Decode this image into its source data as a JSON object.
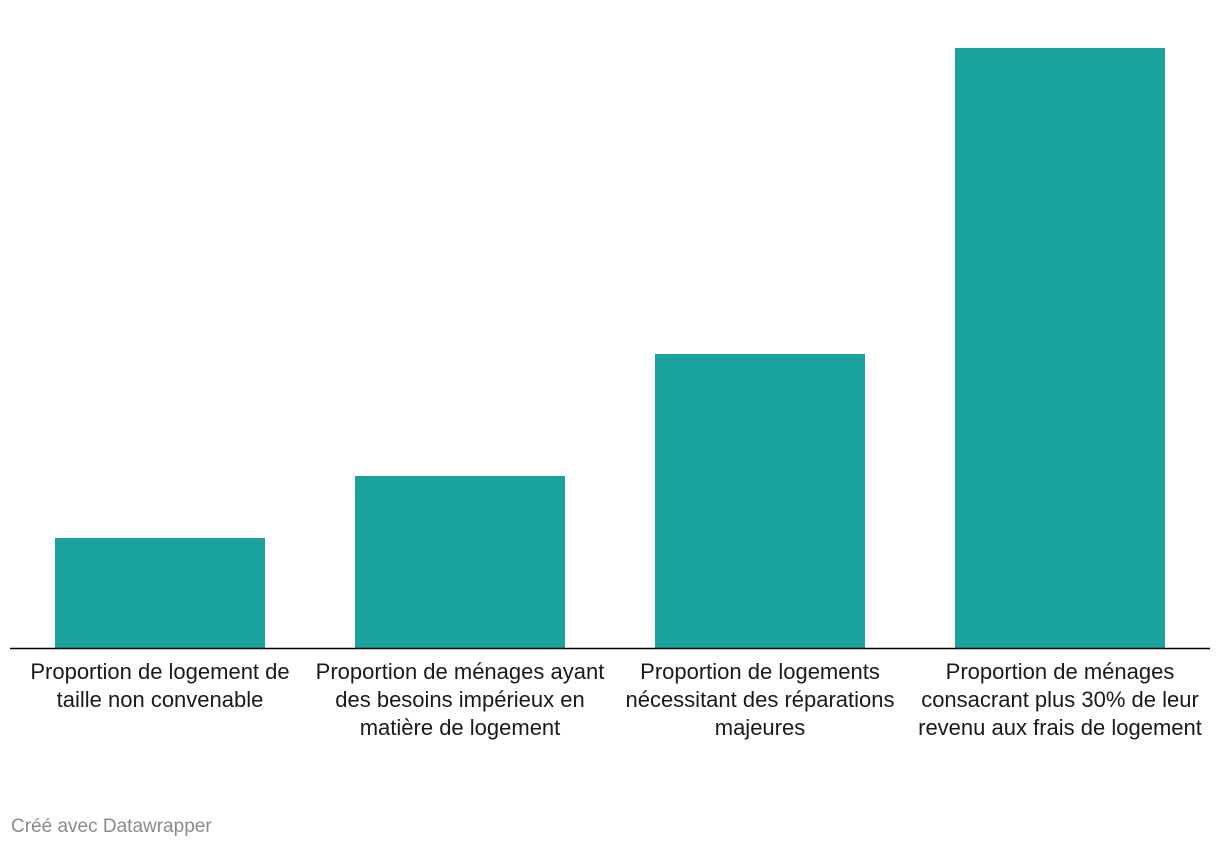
{
  "chart_data": {
    "type": "bar",
    "categories": [
      "Proportion de logement de taille non convenable",
      "Proportion de ménages ayant des besoins impérieux en matière de logement",
      "Proportion de logements nécessitant des réparations majeures",
      "Proportion de ménages consacrant plus 30% de leur revenu aux frais de logement"
    ],
    "values": [
      5.5,
      8.6,
      14.7,
      30.0
    ],
    "ylim": [
      0,
      32
    ],
    "bar_color": "#1aa29e",
    "baseline_color": "#000000",
    "grid": false
  },
  "footer": {
    "credit": "Créé avec Datawrapper"
  }
}
